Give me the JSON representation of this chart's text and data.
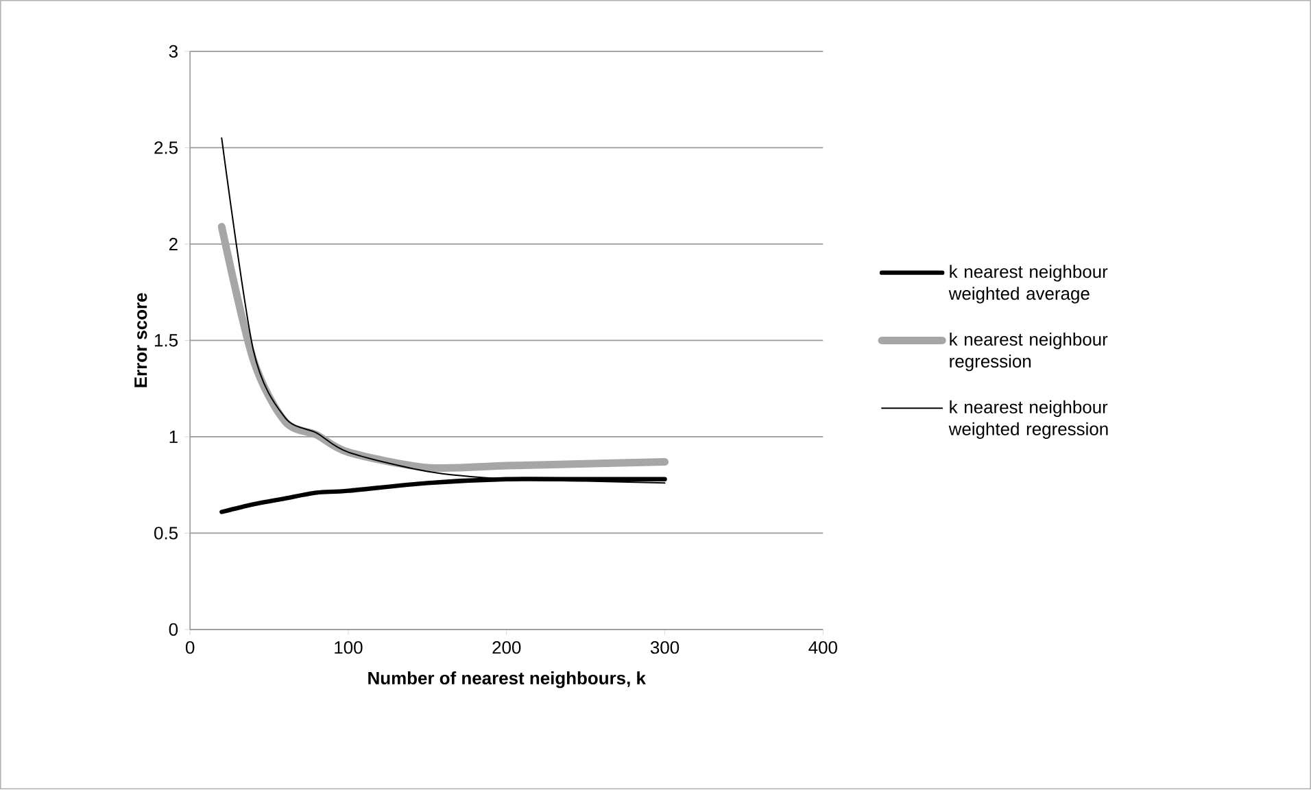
{
  "chart_data": {
    "type": "line",
    "xlabel": "Number of nearest neighbours, k",
    "ylabel": "Error score",
    "x": [
      20,
      40,
      60,
      80,
      100,
      150,
      200,
      250,
      300
    ],
    "series": [
      {
        "name": "k nearest neighbour weighted average",
        "color": "#000000",
        "values": [
          0.61,
          0.65,
          0.68,
          0.71,
          0.72,
          0.76,
          0.78,
          0.78,
          0.78
        ]
      },
      {
        "name": "k nearest neighbour regression",
        "color": "#a6a6a6",
        "values": [
          2.09,
          1.4,
          1.08,
          1.01,
          0.92,
          0.84,
          0.85,
          0.86,
          0.87
        ]
      },
      {
        "name": "k nearest neighbour weighted regression",
        "color": "#000000",
        "values": [
          2.55,
          1.45,
          1.1,
          1.02,
          0.92,
          0.82,
          0.78,
          0.77,
          0.76
        ]
      }
    ],
    "xlim": [
      0,
      400
    ],
    "ylim": [
      0,
      3
    ],
    "xticks": [
      0,
      100,
      200,
      300,
      400
    ],
    "yticks": [
      0,
      0.5,
      1,
      1.5,
      2,
      2.5,
      3
    ],
    "grid": "y",
    "legend": "right"
  }
}
